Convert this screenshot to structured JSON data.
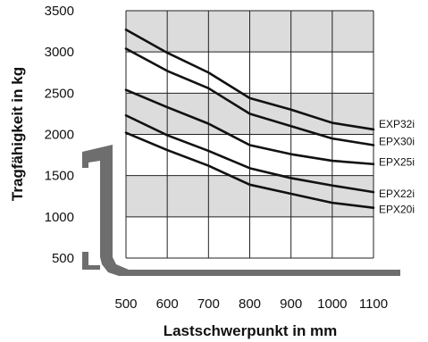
{
  "chart_data": {
    "type": "line",
    "title": "",
    "xlabel": "Lastschwerpunkt in mm",
    "ylabel": "Tragfähigkeit in kg",
    "xlim": [
      500,
      1100
    ],
    "ylim": [
      500,
      3500
    ],
    "xticks": [
      "500",
      "600",
      "700",
      "800",
      "900",
      "1000",
      "1100"
    ],
    "yticks": [
      "500",
      "1000",
      "1500",
      "2000",
      "2500",
      "3000",
      "3500"
    ],
    "grid": true,
    "shaded_bands": [
      [
        1000,
        1500
      ],
      [
        2000,
        2500
      ],
      [
        3000,
        3500
      ]
    ],
    "legend": "right, labels at line ends",
    "x": [
      500,
      600,
      700,
      800,
      900,
      1000,
      1100
    ],
    "series": [
      {
        "name": "EXP32i",
        "values": [
          3270,
          2990,
          2750,
          2440,
          2300,
          2140,
          2060
        ]
      },
      {
        "name": "EPX30i",
        "values": [
          3040,
          2770,
          2560,
          2250,
          2100,
          1950,
          1870
        ]
      },
      {
        "name": "EPX25i",
        "values": [
          2540,
          2330,
          2130,
          1870,
          1760,
          1680,
          1640
        ]
      },
      {
        "name": "EPX22i",
        "values": [
          2230,
          1990,
          1800,
          1590,
          1470,
          1380,
          1300
        ]
      },
      {
        "name": "EPX20i",
        "values": [
          2020,
          1810,
          1620,
          1390,
          1280,
          1170,
          1110
        ]
      }
    ]
  },
  "colors": {
    "line": "#111111",
    "band": "#dcdcdc",
    "grid": "#222222",
    "forklift": "#6e6e6e"
  }
}
